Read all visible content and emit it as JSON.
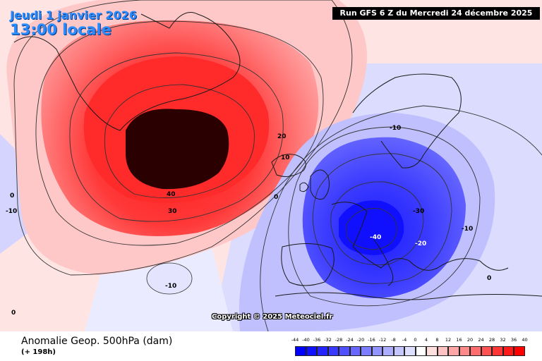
{
  "header": {
    "date": "Jeudi 1 janvier 2026",
    "time": "13:00 locale",
    "run": "Run GFS 6 Z du Mercredi 24 décembre 2025"
  },
  "map": {
    "copyright": "Copyright © 2025 Meteociel.fr",
    "contour_labels": [
      {
        "name": "contour-label-40-greenland",
        "text": "40",
        "color": "#000000"
      },
      {
        "name": "contour-label-30-greenland",
        "text": "30",
        "color": "#000000"
      },
      {
        "name": "contour-label-20-atlantic",
        "text": "20",
        "color": "#000000"
      },
      {
        "name": "contour-label-10-atlantic",
        "text": "10",
        "color": "#000000"
      },
      {
        "name": "contour-label-0-atlantic",
        "text": "0",
        "color": "#000000"
      },
      {
        "name": "contour-label-10-scandinavia",
        "text": "-10",
        "color": "#000000"
      },
      {
        "name": "contour-label-30-europe",
        "text": "-30",
        "color": "#000000"
      },
      {
        "name": "contour-label-40-centre",
        "text": "-40",
        "color": "#ffffff"
      },
      {
        "name": "contour-label-20-italy",
        "text": "-20",
        "color": "#ffffff"
      },
      {
        "name": "contour-label-10-balkans",
        "text": "-10",
        "color": "#000000"
      },
      {
        "name": "contour-label-0-east",
        "text": "0",
        "color": "#000000"
      },
      {
        "name": "contour-label-10-azores",
        "text": "-10",
        "color": "#000000"
      },
      {
        "name": "contour-label-10-west",
        "text": "-10",
        "color": "#000000"
      },
      {
        "name": "contour-label-0-west",
        "text": "0",
        "color": "#000000"
      },
      {
        "name": "contour-label-0-southwest",
        "text": "0",
        "color": "#000000"
      }
    ]
  },
  "footer": {
    "title": "Anomalie Geop. 500hPa (dam)",
    "subtitle": "(+ 198h)"
  },
  "scale": {
    "ticks": [
      "-44",
      "-40",
      "-36",
      "-32",
      "-28",
      "-24",
      "-20",
      "-16",
      "-12",
      "-8",
      "-4",
      "0",
      "4",
      "8",
      "12",
      "16",
      "20",
      "24",
      "28",
      "32",
      "36",
      "40"
    ],
    "colors": [
      "#0000ff",
      "#1111ff",
      "#2424ff",
      "#3a3aff",
      "#5050ff",
      "#6868ff",
      "#7d7dff",
      "#9494ff",
      "#adadff",
      "#c5c5ff",
      "#dedeff",
      "#ffffff",
      "#ffdede",
      "#ffc2c2",
      "#ffa6a6",
      "#ff8a8a",
      "#ff6e6e",
      "#ff5252",
      "#ff3636",
      "#ff1a1a",
      "#ff0000"
    ]
  }
}
